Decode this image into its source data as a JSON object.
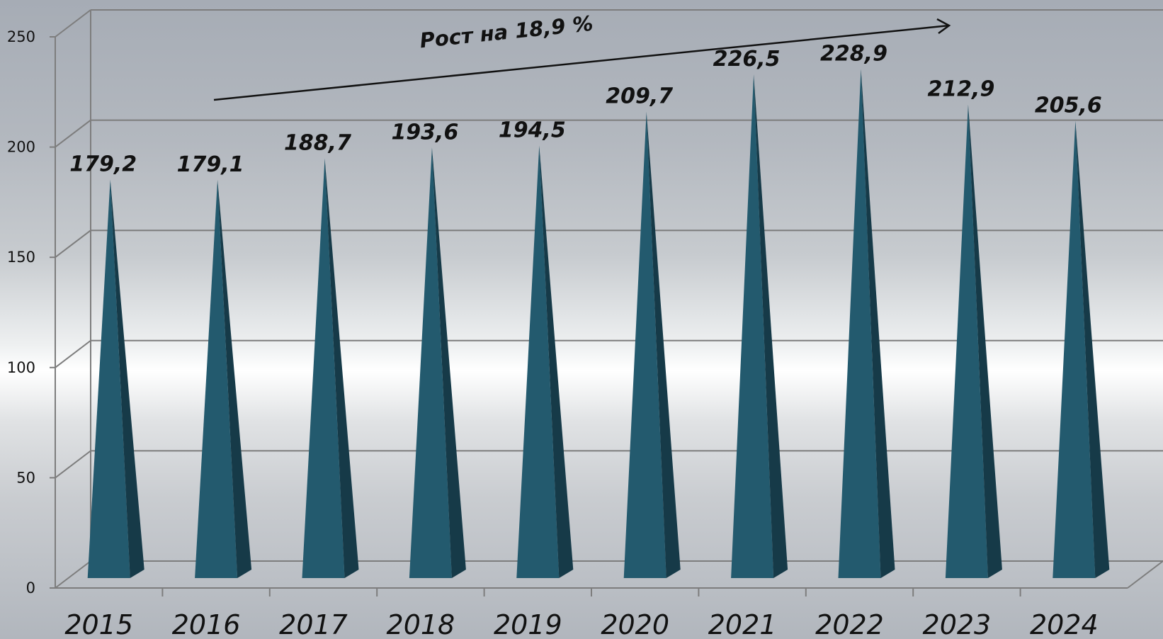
{
  "chart_data": {
    "type": "bar",
    "categories": [
      "2015",
      "2016",
      "2017",
      "2018",
      "2019",
      "2020",
      "2021",
      "2022",
      "2023",
      "2024"
    ],
    "values": [
      179.2,
      179.1,
      188.7,
      193.6,
      194.5,
      209.7,
      226.5,
      228.9,
      212.9,
      205.6
    ],
    "value_labels": [
      "179,2",
      "179,1",
      "188,7",
      "193,6",
      "194,5",
      "209,7",
      "226,5",
      "228,9",
      "212,9",
      "205,6"
    ],
    "ylim": [
      0,
      250
    ],
    "yticks": [
      "0",
      "50",
      "100",
      "150",
      "200",
      "250"
    ],
    "grid": true,
    "bar_shape": "3d-pyramid",
    "annotation": "Рост на 18,9 %",
    "colors": {
      "bar_front": "#235a6e",
      "bar_side": "#163a48",
      "grid": "#7d7d7d",
      "text": "#111111"
    }
  }
}
